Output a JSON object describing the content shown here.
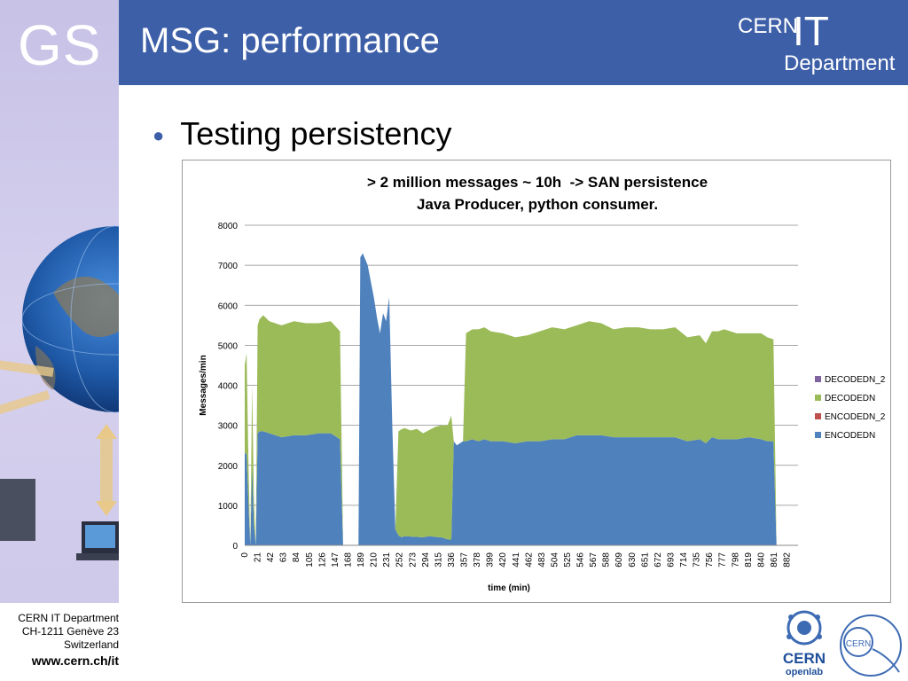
{
  "sidebar": {
    "logo_text": "GS"
  },
  "header": {
    "title": "MSG: performance",
    "logo_cern": "CERN",
    "logo_it": "IT",
    "logo_department": "Department"
  },
  "bullet": {
    "text": "Testing persistency"
  },
  "chart_data": {
    "type": "area",
    "title": "> 2 million messages ~ 10h  -> SAN persistence",
    "subtitle": "Java Producer, python consumer.",
    "xlabel": "time (min)",
    "ylabel": "Messages/min",
    "ylim": [
      0,
      8000
    ],
    "yticks": [
      0,
      1000,
      2000,
      3000,
      4000,
      5000,
      6000,
      7000,
      8000
    ],
    "x_tick_labels": [
      "0",
      "21",
      "42",
      "63",
      "84",
      "105",
      "126",
      "147",
      "168",
      "189",
      "210",
      "231",
      "252",
      "273",
      "294",
      "315",
      "336",
      "357",
      "378",
      "399",
      "420",
      "441",
      "462",
      "483",
      "504",
      "525",
      "546",
      "567",
      "588",
      "609",
      "630",
      "651",
      "672",
      "693",
      "714",
      "735",
      "756",
      "777",
      "798",
      "819",
      "840",
      "861",
      "882"
    ],
    "xlim": [
      0,
      900
    ],
    "grid": true,
    "stacked": true,
    "legend_position": "right",
    "legend": [
      {
        "name": "DECODEDN_2",
        "color": "#8064a2"
      },
      {
        "name": "DECODEDN",
        "color": "#9bbb59"
      },
      {
        "name": "ENCODEDN_2",
        "color": "#c0504d"
      },
      {
        "name": "ENCODEDN",
        "color": "#4f81bd"
      }
    ],
    "x": [
      0,
      3,
      6,
      9,
      12,
      15,
      18,
      21,
      24,
      30,
      40,
      60,
      80,
      100,
      120,
      140,
      155,
      160,
      175,
      185,
      188,
      192,
      200,
      210,
      215,
      220,
      225,
      230,
      235,
      240,
      245,
      250,
      255,
      260,
      270,
      280,
      290,
      300,
      310,
      320,
      330,
      336,
      340,
      345,
      350,
      355,
      360,
      370,
      380,
      390,
      400,
      420,
      440,
      460,
      480,
      500,
      520,
      540,
      560,
      580,
      600,
      620,
      640,
      660,
      680,
      700,
      720,
      740,
      750,
      760,
      770,
      780,
      800,
      820,
      840,
      850,
      860,
      865,
      880,
      900
    ],
    "series": [
      {
        "name": "DECODEDN_2",
        "values": [
          0,
          0,
          0,
          0,
          0,
          0,
          0,
          0,
          0,
          0,
          0,
          0,
          0,
          0,
          0,
          0,
          0,
          0,
          0,
          0,
          0,
          0,
          0,
          0,
          0,
          0,
          0,
          0,
          0,
          0,
          0,
          0,
          0,
          0,
          0,
          0,
          0,
          0,
          0,
          0,
          0,
          0,
          0,
          0,
          0,
          0,
          0,
          0,
          0,
          0,
          0,
          0,
          0,
          0,
          0,
          0,
          0,
          0,
          0,
          0,
          0,
          0,
          0,
          0,
          0,
          0,
          0,
          0,
          0,
          0,
          0,
          0,
          0,
          0,
          0,
          0,
          0,
          0,
          0,
          0
        ]
      },
      {
        "name": "DECODEDN",
        "values": [
          2200,
          2500,
          1000,
          0,
          2000,
          600,
          0,
          2700,
          2800,
          2900,
          2800,
          2800,
          2850,
          2800,
          2750,
          2800,
          2700,
          0,
          0,
          0,
          0,
          0,
          0,
          0,
          0,
          0,
          0,
          0,
          0,
          0,
          0,
          2600,
          2700,
          2700,
          2650,
          2700,
          2600,
          2650,
          2750,
          2800,
          2850,
          3100,
          0,
          0,
          0,
          0,
          2700,
          2750,
          2800,
          2800,
          2750,
          2700,
          2650,
          2650,
          2750,
          2800,
          2750,
          2750,
          2850,
          2800,
          2700,
          2750,
          2750,
          2700,
          2700,
          2750,
          2600,
          2600,
          2500,
          2650,
          2700,
          2750,
          2650,
          2600,
          2650,
          2600,
          2550,
          0,
          0,
          0
        ]
      },
      {
        "name": "ENCODEDN_2",
        "values": [
          0,
          0,
          0,
          0,
          0,
          0,
          0,
          0,
          0,
          0,
          0,
          0,
          0,
          0,
          0,
          0,
          0,
          0,
          0,
          0,
          0,
          0,
          0,
          0,
          0,
          0,
          0,
          0,
          0,
          0,
          0,
          0,
          0,
          0,
          0,
          0,
          0,
          0,
          0,
          0,
          0,
          0,
          0,
          0,
          0,
          0,
          0,
          0,
          0,
          0,
          0,
          0,
          0,
          0,
          0,
          0,
          0,
          0,
          0,
          0,
          0,
          0,
          0,
          0,
          0,
          0,
          0,
          0,
          0,
          0,
          0,
          0,
          0,
          0,
          0,
          0,
          0,
          0,
          0,
          0
        ]
      },
      {
        "name": "ENCODEDN",
        "values": [
          2300,
          2300,
          1100,
          0,
          2000,
          500,
          0,
          2800,
          2850,
          2850,
          2800,
          2700,
          2750,
          2750,
          2800,
          2800,
          2650,
          0,
          0,
          0,
          7200,
          7300,
          7000,
          6200,
          5700,
          5300,
          5800,
          5600,
          6200,
          3000,
          400,
          250,
          200,
          230,
          220,
          210,
          200,
          230,
          210,
          200,
          150,
          140,
          2600,
          2500,
          2550,
          2600,
          2600,
          2650,
          2600,
          2650,
          2600,
          2600,
          2550,
          2600,
          2600,
          2650,
          2650,
          2750,
          2750,
          2750,
          2700,
          2700,
          2700,
          2700,
          2700,
          2700,
          2600,
          2650,
          2550,
          2700,
          2650,
          2650,
          2650,
          2700,
          2650,
          2600,
          2600,
          0,
          0,
          0
        ]
      }
    ]
  },
  "footer": {
    "line1": "CERN IT Department",
    "line2": "CH-1211 Genève 23",
    "line3": "Switzerland",
    "url": "www.cern.ch/it"
  },
  "logos": {
    "openlab_cern": "CERN",
    "openlab_sub": "openlab",
    "cern_mark": "CERN"
  }
}
